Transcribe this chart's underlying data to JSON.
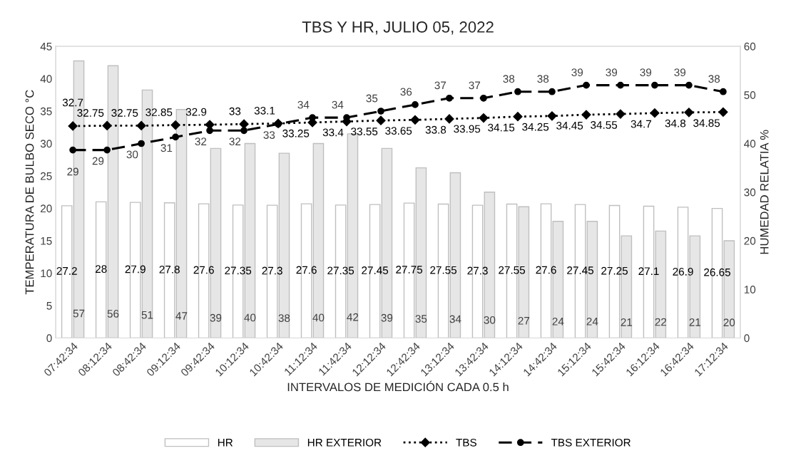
{
  "chart_data": {
    "type": "bar",
    "title": "TBS Y HR, JULIO 05, 2022",
    "xlabel": "INTERVALOS DE MEDICIÓN CADA 0.5 h",
    "ylabel": "TEMPERATURA DE BULBO SECO °C",
    "y2label": "HUMEDAD RELATIA %",
    "categories": [
      "07:42:34",
      "08:12:34",
      "08:42:34",
      "09:12:34",
      "09:42:34",
      "10:12:34",
      "10:42:34",
      "11:12:34",
      "11:42:34",
      "12:12:34",
      "12:42:34",
      "13:12:34",
      "13:42:34",
      "14:12:34",
      "14:42:34",
      "15:12:34",
      "15:42:34",
      "16:12:34",
      "16:42:34",
      "17:12:34"
    ],
    "series": [
      {
        "name": "HR",
        "axis": "y2",
        "color": "#ffffff",
        "values": [
          27.2,
          28,
          27.9,
          27.8,
          27.6,
          27.35,
          27.3,
          27.6,
          27.35,
          27.45,
          27.75,
          27.55,
          27.3,
          27.55,
          27.6,
          27.45,
          27.25,
          27.1,
          26.9,
          26.65
        ]
      },
      {
        "name": "HR EXTERIOR",
        "axis": "y2",
        "color": "#e7e6e6",
        "values": [
          57,
          56,
          51,
          47,
          39,
          40,
          38,
          40,
          42,
          39,
          35,
          34,
          30,
          27,
          24,
          24,
          21,
          22,
          21,
          20
        ]
      },
      {
        "name": "TBS",
        "type": "line",
        "color": "#000000",
        "marker": "diamond",
        "line_style": "dotted",
        "values": [
          32.7,
          32.75,
          32.75,
          32.85,
          32.9,
          33,
          33.1,
          33.25,
          33.4,
          33.55,
          33.65,
          33.8,
          33.95,
          34.15,
          34.25,
          34.45,
          34.55,
          34.7,
          34.8,
          34.85
        ]
      },
      {
        "name": "TBS EXTERIOR",
        "type": "line",
        "color": "#000000",
        "marker": "circle",
        "line_style": "dashed",
        "values": [
          29,
          29,
          30,
          31,
          32,
          32,
          33,
          34,
          34,
          35,
          36,
          37,
          37,
          38,
          38,
          39,
          39,
          39,
          39,
          38
        ]
      }
    ],
    "ylim": [
      0,
      45
    ],
    "yticks": [
      0,
      5,
      10,
      15,
      20,
      25,
      30,
      35,
      40,
      45
    ],
    "y2lim": [
      0,
      60
    ],
    "y2ticks": [
      0,
      10,
      20,
      30,
      40,
      50,
      60
    ],
    "data_labels": true,
    "legend": "bottom",
    "grid": false
  }
}
